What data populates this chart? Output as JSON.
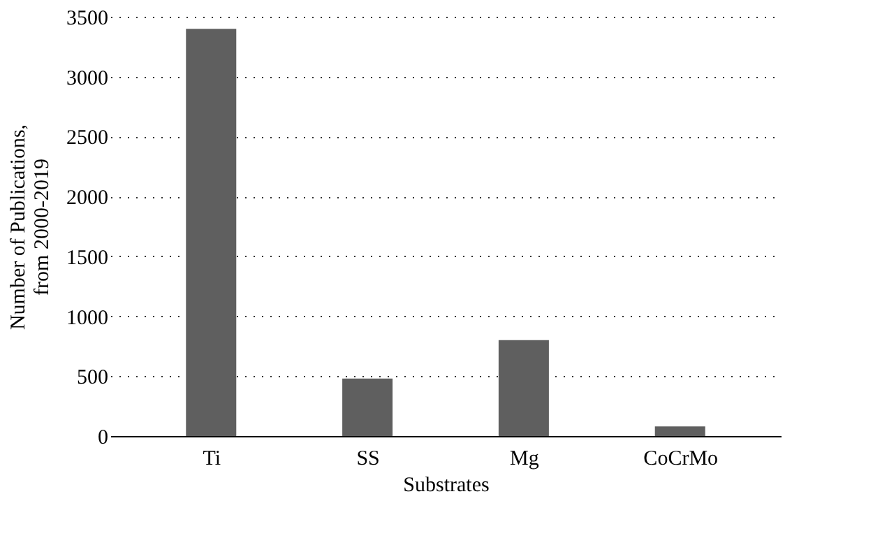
{
  "chart_data": {
    "type": "bar",
    "categories": [
      "Ti",
      "SS",
      "Mg",
      "CoCrMo"
    ],
    "values": [
      3400,
      480,
      800,
      80
    ],
    "color": "#5f5f5f",
    "xlabel": "Substrates",
    "ylabel": "Number of Publications,\nfrom 2000-2019",
    "ylim": [
      0,
      3500
    ],
    "yticks": [
      0,
      500,
      1000,
      1500,
      2000,
      2500,
      3000,
      3500
    ],
    "grid": "y"
  }
}
